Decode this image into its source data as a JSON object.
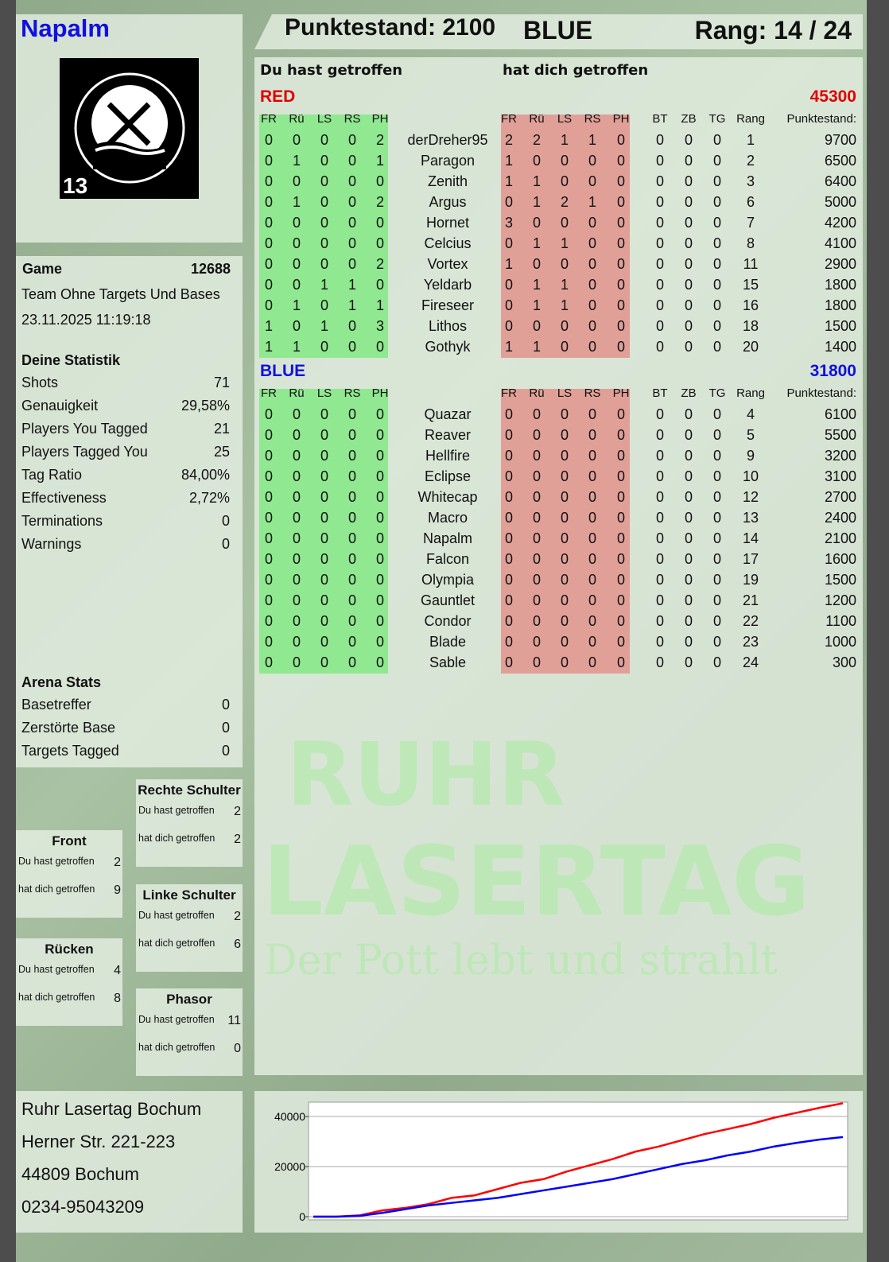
{
  "player": {
    "name": "Napalm",
    "logo_text": "RUHR LASERTAG",
    "logo_badge": "13"
  },
  "header": {
    "score_label": "Punktestand: 2100",
    "team": "BLUE",
    "rank_label": "Rang: 14 / 24"
  },
  "table": {
    "left_title": "Du hast getroffen",
    "right_title": "hat dich getroffen",
    "columns_hit": [
      "FR",
      "Rü",
      "LS",
      "RS",
      "PH"
    ],
    "columns_extra": [
      "BT",
      "ZB",
      "TG",
      "Rang",
      "Punktestand:"
    ],
    "teams": [
      {
        "name": "RED",
        "score": "45300",
        "color": "#e00000",
        "rows": [
          {
            "hit": [
              0,
              0,
              0,
              0,
              2
            ],
            "name": "derDreher95",
            "got": [
              2,
              2,
              1,
              1,
              0
            ],
            "extra": [
              0,
              0,
              0,
              1,
              9700
            ]
          },
          {
            "hit": [
              0,
              1,
              0,
              0,
              1
            ],
            "name": "Paragon",
            "got": [
              1,
              0,
              0,
              0,
              0
            ],
            "extra": [
              0,
              0,
              0,
              2,
              6500
            ]
          },
          {
            "hit": [
              0,
              0,
              0,
              0,
              0
            ],
            "name": "Zenith",
            "got": [
              1,
              1,
              0,
              0,
              0
            ],
            "extra": [
              0,
              0,
              0,
              3,
              6400
            ]
          },
          {
            "hit": [
              0,
              1,
              0,
              0,
              2
            ],
            "name": "Argus",
            "got": [
              0,
              1,
              2,
              1,
              0
            ],
            "extra": [
              0,
              0,
              0,
              6,
              5000
            ]
          },
          {
            "hit": [
              0,
              0,
              0,
              0,
              0
            ],
            "name": "Hornet",
            "got": [
              3,
              0,
              0,
              0,
              0
            ],
            "extra": [
              0,
              0,
              0,
              7,
              4200
            ]
          },
          {
            "hit": [
              0,
              0,
              0,
              0,
              0
            ],
            "name": "Celcius",
            "got": [
              0,
              1,
              1,
              0,
              0
            ],
            "extra": [
              0,
              0,
              0,
              8,
              4100
            ]
          },
          {
            "hit": [
              0,
              0,
              0,
              0,
              2
            ],
            "name": "Vortex",
            "got": [
              1,
              0,
              0,
              0,
              0
            ],
            "extra": [
              0,
              0,
              0,
              11,
              2900
            ]
          },
          {
            "hit": [
              0,
              0,
              1,
              1,
              0
            ],
            "name": "Yeldarb",
            "got": [
              0,
              1,
              1,
              0,
              0
            ],
            "extra": [
              0,
              0,
              0,
              15,
              1800
            ]
          },
          {
            "hit": [
              0,
              1,
              0,
              1,
              1
            ],
            "name": "Fireseer",
            "got": [
              0,
              1,
              1,
              0,
              0
            ],
            "extra": [
              0,
              0,
              0,
              16,
              1800
            ]
          },
          {
            "hit": [
              1,
              0,
              1,
              0,
              3
            ],
            "name": "Lithos",
            "got": [
              0,
              0,
              0,
              0,
              0
            ],
            "extra": [
              0,
              0,
              0,
              18,
              1500
            ]
          },
          {
            "hit": [
              1,
              1,
              0,
              0,
              0
            ],
            "name": "Gothyk",
            "got": [
              1,
              1,
              0,
              0,
              0
            ],
            "extra": [
              0,
              0,
              0,
              20,
              1400
            ]
          }
        ]
      },
      {
        "name": "BLUE",
        "score": "31800",
        "color": "#1010e0",
        "rows": [
          {
            "hit": [
              0,
              0,
              0,
              0,
              0
            ],
            "name": "Quazar",
            "got": [
              0,
              0,
              0,
              0,
              0
            ],
            "extra": [
              0,
              0,
              0,
              4,
              6100
            ]
          },
          {
            "hit": [
              0,
              0,
              0,
              0,
              0
            ],
            "name": "Reaver",
            "got": [
              0,
              0,
              0,
              0,
              0
            ],
            "extra": [
              0,
              0,
              0,
              5,
              5500
            ]
          },
          {
            "hit": [
              0,
              0,
              0,
              0,
              0
            ],
            "name": "Hellfire",
            "got": [
              0,
              0,
              0,
              0,
              0
            ],
            "extra": [
              0,
              0,
              0,
              9,
              3200
            ]
          },
          {
            "hit": [
              0,
              0,
              0,
              0,
              0
            ],
            "name": "Eclipse",
            "got": [
              0,
              0,
              0,
              0,
              0
            ],
            "extra": [
              0,
              0,
              0,
              10,
              3100
            ]
          },
          {
            "hit": [
              0,
              0,
              0,
              0,
              0
            ],
            "name": "Whitecap",
            "got": [
              0,
              0,
              0,
              0,
              0
            ],
            "extra": [
              0,
              0,
              0,
              12,
              2700
            ]
          },
          {
            "hit": [
              0,
              0,
              0,
              0,
              0
            ],
            "name": "Macro",
            "got": [
              0,
              0,
              0,
              0,
              0
            ],
            "extra": [
              0,
              0,
              0,
              13,
              2400
            ]
          },
          {
            "hit": [
              0,
              0,
              0,
              0,
              0
            ],
            "name": "Napalm",
            "got": [
              0,
              0,
              0,
              0,
              0
            ],
            "extra": [
              0,
              0,
              0,
              14,
              2100
            ]
          },
          {
            "hit": [
              0,
              0,
              0,
              0,
              0
            ],
            "name": "Falcon",
            "got": [
              0,
              0,
              0,
              0,
              0
            ],
            "extra": [
              0,
              0,
              0,
              17,
              1600
            ]
          },
          {
            "hit": [
              0,
              0,
              0,
              0,
              0
            ],
            "name": "Olympia",
            "got": [
              0,
              0,
              0,
              0,
              0
            ],
            "extra": [
              0,
              0,
              0,
              19,
              1500
            ]
          },
          {
            "hit": [
              0,
              0,
              0,
              0,
              0
            ],
            "name": "Gauntlet",
            "got": [
              0,
              0,
              0,
              0,
              0
            ],
            "extra": [
              0,
              0,
              0,
              21,
              1200
            ]
          },
          {
            "hit": [
              0,
              0,
              0,
              0,
              0
            ],
            "name": "Condor",
            "got": [
              0,
              0,
              0,
              0,
              0
            ],
            "extra": [
              0,
              0,
              0,
              22,
              1100
            ]
          },
          {
            "hit": [
              0,
              0,
              0,
              0,
              0
            ],
            "name": "Blade",
            "got": [
              0,
              0,
              0,
              0,
              0
            ],
            "extra": [
              0,
              0,
              0,
              23,
              1000
            ]
          },
          {
            "hit": [
              0,
              0,
              0,
              0,
              0
            ],
            "name": "Sable",
            "got": [
              0,
              0,
              0,
              0,
              0
            ],
            "extra": [
              0,
              0,
              0,
              24,
              300
            ]
          }
        ]
      }
    ]
  },
  "game": {
    "label": "Game",
    "id": "12688",
    "mode": "Team Ohne Targets Und Bases",
    "datetime": "23.11.2025 11:19:18"
  },
  "stats": {
    "title": "Deine Statistik",
    "rows": [
      [
        "Shots",
        "71"
      ],
      [
        "Genauigkeit",
        "29,58%"
      ],
      [
        "Players You Tagged",
        "21"
      ],
      [
        "Players Tagged You",
        "25"
      ],
      [
        "Tag Ratio",
        "84,00%"
      ],
      [
        "Effectiveness",
        "2,72%"
      ],
      [
        "Terminations",
        "0"
      ],
      [
        "Warnings",
        "0"
      ]
    ]
  },
  "arena": {
    "title": "Arena Stats",
    "rows": [
      [
        "Basetreffer",
        "0"
      ],
      [
        "Zerstörte Base",
        "0"
      ],
      [
        "Targets Tagged",
        "0"
      ]
    ]
  },
  "zones": [
    {
      "title": "Rechte Schulter",
      "hit_label": "Du hast getroffen",
      "hit": "2",
      "got_label": "hat dich getroffen",
      "got": "2"
    },
    {
      "title": "Front",
      "hit_label": "Du hast getroffen",
      "hit": "2",
      "got_label": "hat dich getroffen",
      "got": "9"
    },
    {
      "title": "Linke Schulter",
      "hit_label": "Du hast getroffen",
      "hit": "2",
      "got_label": "hat dich getroffen",
      "got": "6"
    },
    {
      "title": "Rücken",
      "hit_label": "Du hast getroffen",
      "hit": "4",
      "got_label": "hat dich getroffen",
      "got": "8"
    },
    {
      "title": "Phasor",
      "hit_label": "Du hast getroffen",
      "hit": "11",
      "got_label": "hat dich getroffen",
      "got": "0"
    }
  ],
  "address": [
    "Ruhr Lasertag Bochum",
    "Herner Str. 221-223",
    "44809 Bochum",
    "0234-95043209"
  ],
  "watermark": {
    "line1": "RUHR",
    "line2": "LASERTAG",
    "slogan": "Der Pott lebt und strahlt"
  },
  "colors": {
    "hit_bg": "#90e890",
    "got_bg": "#e0a098",
    "red": "#e00000",
    "blue": "#1010e0"
  },
  "chart_data": {
    "type": "line",
    "ylim": [
      0,
      47000
    ],
    "yticks": [
      "0",
      "20000",
      "40000"
    ],
    "grid": true,
    "series": [
      {
        "color": "#ff0000",
        "values": [
          0,
          0,
          500,
          2500,
          3500,
          5000,
          7500,
          8500,
          11000,
          13500,
          15000,
          18000,
          20500,
          23000,
          26000,
          28000,
          30500,
          33000,
          35000,
          37000,
          39500,
          41500,
          43500,
          45300
        ]
      },
      {
        "color": "#0000ff",
        "values": [
          0,
          0,
          300,
          1500,
          3000,
          4500,
          5500,
          6500,
          7500,
          9000,
          10500,
          12000,
          13500,
          15000,
          17000,
          19000,
          21000,
          22500,
          24500,
          26000,
          28000,
          29500,
          30800,
          31800
        ]
      }
    ]
  }
}
